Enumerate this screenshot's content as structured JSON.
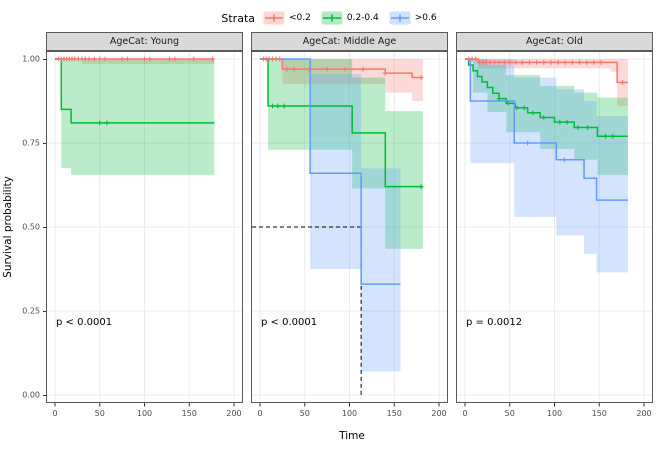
{
  "legend": {
    "title": "Strata"
  },
  "axes": {
    "x_label": "Time",
    "y_label": "Survival probability",
    "x_ticks": [
      0,
      50,
      100,
      150,
      200
    ],
    "y_ticks": [
      "1.00",
      "0.75",
      "0.50",
      "0.25",
      "0.00"
    ],
    "y_tick_values": [
      1,
      0.75,
      0.5,
      0.25,
      0
    ]
  },
  "chart_data": {
    "type": "line",
    "subtype": "kaplan-meier-survival",
    "x_range": [
      0,
      200
    ],
    "y_range": [
      0,
      1
    ],
    "grid": true,
    "legend_position": "top",
    "series_legend": [
      {
        "label": "<0.2",
        "color": "#F8766D"
      },
      {
        "label": "0.2-0.4",
        "color": "#00BA38"
      },
      {
        "label": ">0.6",
        "color": "#619CFF"
      }
    ],
    "facets": [
      {
        "title": "AgeCat: Young",
        "p_label": "p < 0.0001",
        "series": [
          {
            "name": "<0.2",
            "steps": [
              [
                0,
                1
              ],
              [
                178,
                1
              ]
            ],
            "censors": [
              4,
              7,
              10,
              13,
              16,
              19,
              22,
              26,
              30,
              34,
              38,
              44,
              50,
              56,
              75,
              81,
              100,
              106,
              128,
              134,
              155,
              176
            ],
            "ci_upper": [
              [
                0,
                1
              ],
              [
                178,
                1
              ]
            ],
            "ci_lower": [
              [
                0,
                1
              ],
              [
                30,
                0.985
              ],
              [
                178,
                0.965
              ]
            ]
          },
          {
            "name": "0.2-0.4",
            "steps": [
              [
                0,
                1
              ],
              [
                7,
                0.85
              ],
              [
                18,
                0.81
              ],
              [
                178,
                0.81
              ]
            ],
            "censors": [
              50,
              58
            ],
            "ci_upper": [
              [
                0,
                1
              ],
              [
                178,
                1
              ]
            ],
            "ci_lower": [
              [
                0,
                1
              ],
              [
                7,
                0.675
              ],
              [
                18,
                0.655
              ],
              [
                178,
                0.655
              ]
            ]
          }
        ]
      },
      {
        "title": "AgeCat: Middle Age",
        "p_label": "p < 0.0001",
        "median": {
          "x": 113,
          "y": 0.5
        },
        "series": [
          {
            "name": "<0.2",
            "steps": [
              [
                0,
                1
              ],
              [
                25,
                0.97
              ],
              [
                140,
                0.958
              ],
              [
                170,
                0.945
              ],
              [
                182,
                0.945
              ]
            ],
            "censors": [
              4,
              7,
              10,
              14,
              18,
              22,
              30,
              38,
              55,
              75,
              95,
              115,
              140,
              180
            ],
            "ci_upper": [
              [
                0,
                1
              ],
              [
                182,
                1
              ]
            ],
            "ci_lower": [
              [
                0,
                1
              ],
              [
                25,
                0.925
              ],
              [
                140,
                0.9
              ],
              [
                170,
                0.875
              ],
              [
                182,
                0.875
              ]
            ]
          },
          {
            "name": "0.2-0.4",
            "steps": [
              [
                0,
                1
              ],
              [
                9,
                0.86
              ],
              [
                103,
                0.78
              ],
              [
                140,
                0.62
              ],
              [
                182,
                0.62
              ]
            ],
            "censors": [
              14,
              20,
              27,
              180
            ],
            "ci_upper": [
              [
                0,
                1
              ],
              [
                9,
                1
              ],
              [
                103,
                0.945
              ],
              [
                140,
                0.845
              ],
              [
                182,
                0.845
              ]
            ],
            "ci_lower": [
              [
                0,
                1
              ],
              [
                9,
                0.73
              ],
              [
                103,
                0.615
              ],
              [
                140,
                0.435
              ],
              [
                182,
                0.435
              ]
            ]
          },
          {
            "name": ">0.6",
            "steps": [
              [
                0,
                1
              ],
              [
                56,
                0.66
              ],
              [
                113,
                0.33
              ],
              [
                157,
                0.33
              ]
            ],
            "censors": [],
            "ci_upper": [
              [
                0,
                1
              ],
              [
                56,
                0.955
              ],
              [
                113,
                0.675
              ],
              [
                157,
                0.675
              ]
            ],
            "ci_lower": [
              [
                0,
                1
              ],
              [
                56,
                0.375
              ],
              [
                113,
                0.07
              ],
              [
                157,
                0.07
              ]
            ]
          }
        ]
      },
      {
        "title": "AgeCat: Old",
        "p_label": "p = 0.0012",
        "series": [
          {
            "name": "<0.2",
            "steps": [
              [
                0,
                1
              ],
              [
                15,
                0.99
              ],
              [
                163,
                0.99
              ],
              [
                170,
                0.93
              ],
              [
                182,
                0.93
              ]
            ],
            "censors": [
              4,
              8,
              12,
              16,
              20,
              24,
              28,
              33,
              38,
              44,
              50,
              57,
              64,
              72,
              80,
              88,
              96,
              104,
              112,
              120,
              128,
              136,
              144,
              152,
              176
            ],
            "ci_upper": [
              [
                0,
                1
              ],
              [
                182,
                1
              ]
            ],
            "ci_lower": [
              [
                0,
                1
              ],
              [
                15,
                0.972
              ],
              [
                163,
                0.962
              ],
              [
                170,
                0.86
              ],
              [
                182,
                0.86
              ]
            ]
          },
          {
            "name": "0.2-0.4",
            "steps": [
              [
                0,
                1
              ],
              [
                4,
                0.982
              ],
              [
                9,
                0.965
              ],
              [
                14,
                0.948
              ],
              [
                19,
                0.932
              ],
              [
                25,
                0.915
              ],
              [
                31,
                0.898
              ],
              [
                38,
                0.882
              ],
              [
                46,
                0.868
              ],
              [
                56,
                0.855
              ],
              [
                70,
                0.84
              ],
              [
                84,
                0.826
              ],
              [
                100,
                0.812
              ],
              [
                122,
                0.796
              ],
              [
                148,
                0.77
              ],
              [
                182,
                0.77
              ]
            ],
            "censors": [
              38,
              48,
              58,
              66,
              76,
              88,
              106,
              114,
              126,
              137,
              157,
              165
            ],
            "ci_upper": [
              [
                0,
                1
              ],
              [
                9,
                1
              ],
              [
                25,
                0.982
              ],
              [
                46,
                0.952
              ],
              [
                84,
                0.92
              ],
              [
                122,
                0.9
              ],
              [
                148,
                0.885
              ],
              [
                182,
                0.885
              ]
            ],
            "ci_lower": [
              [
                0,
                1
              ],
              [
                9,
                0.9
              ],
              [
                25,
                0.842
              ],
              [
                46,
                0.782
              ],
              [
                84,
                0.732
              ],
              [
                122,
                0.7
              ],
              [
                148,
                0.655
              ],
              [
                182,
                0.655
              ]
            ]
          },
          {
            "name": ">0.6",
            "steps": [
              [
                0,
                1
              ],
              [
                6,
                0.875
              ],
              [
                55,
                0.75
              ],
              [
                102,
                0.7
              ],
              [
                133,
                0.645
              ],
              [
                147,
                0.58
              ],
              [
                182,
                0.58
              ]
            ],
            "censors": [
              70,
              111
            ],
            "ci_upper": [
              [
                0,
                1
              ],
              [
                6,
                1
              ],
              [
                55,
                0.945
              ],
              [
                102,
                0.91
              ],
              [
                133,
                0.875
              ],
              [
                147,
                0.83
              ],
              [
                182,
                0.83
              ]
            ],
            "ci_lower": [
              [
                0,
                1
              ],
              [
                6,
                0.69
              ],
              [
                55,
                0.53
              ],
              [
                102,
                0.475
              ],
              [
                133,
                0.42
              ],
              [
                147,
                0.365
              ],
              [
                182,
                0.365
              ]
            ]
          }
        ]
      }
    ]
  }
}
